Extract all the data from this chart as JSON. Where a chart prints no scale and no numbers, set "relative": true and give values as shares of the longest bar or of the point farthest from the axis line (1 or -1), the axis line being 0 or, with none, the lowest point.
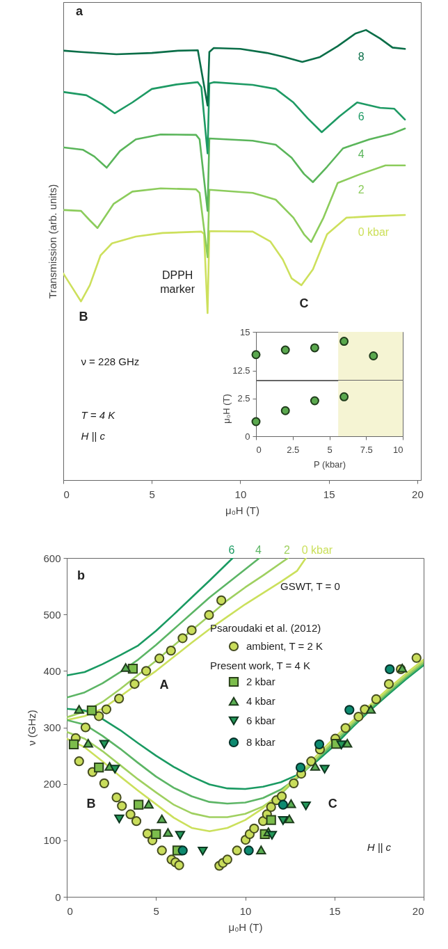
{
  "chart_data": [
    {
      "type": "line",
      "relative": true,
      "xlabel": "μ₀H (T)",
      "ylabel": "Transmission (arb. units)",
      "xlim": [
        0,
        20.2
      ],
      "xticks": [
        0,
        5,
        10,
        15,
        20
      ],
      "annotations": [
        "a",
        "DPPH marker",
        "B",
        "C",
        "ν = 228 GHz",
        "T = 4 K",
        "H || c"
      ],
      "series": [
        {
          "name": "0 kbar",
          "color": "#cde05c",
          "x": [
            0,
            0.5,
            1.0,
            1.5,
            2.1,
            2.75,
            4.1,
            5.6,
            7.8,
            7.95,
            8.15,
            8.25,
            10.7,
            11.7,
            12.4,
            12.9,
            13.45,
            14.1,
            14.9,
            16.0,
            17.4,
            19.3
          ],
          "values": [
            0.459,
            0.428,
            0.397,
            0.433,
            0.499,
            0.526,
            0.541,
            0.549,
            0.552,
            0.547,
            0.371,
            0.553,
            0.552,
            0.53,
            0.49,
            0.448,
            0.433,
            0.468,
            0.546,
            0.583,
            0.586,
            0.589
          ]
        },
        {
          "name": "2",
          "color": "#8ccc5c",
          "x": [
            0.05,
            1.0,
            1.5,
            1.93,
            2.85,
            3.9,
            5.5,
            7.5,
            7.7,
            8.15,
            8.25,
            10.7,
            12.0,
            13.0,
            13.6,
            14.0,
            14.7,
            15.5,
            16.8,
            18.2,
            19.3
          ],
          "values": [
            0.6,
            0.598,
            0.577,
            0.56,
            0.614,
            0.641,
            0.648,
            0.646,
            0.638,
            0.495,
            0.645,
            0.638,
            0.623,
            0.583,
            0.546,
            0.529,
            0.583,
            0.66,
            0.68,
            0.699,
            0.699
          ]
        },
        {
          "name": "4",
          "color": "#5ab55a",
          "x": [
            0.05,
            1.1,
            1.75,
            2.45,
            3.2,
            4.1,
            5.5,
            7.5,
            7.7,
            8.15,
            8.25,
            10.7,
            12.0,
            12.9,
            13.6,
            14.1,
            14.9,
            15.8,
            17.3,
            18.6,
            19.3
          ],
          "values": [
            0.739,
            0.734,
            0.719,
            0.694,
            0.731,
            0.757,
            0.768,
            0.767,
            0.757,
            0.598,
            0.759,
            0.754,
            0.745,
            0.716,
            0.68,
            0.662,
            0.696,
            0.737,
            0.757,
            0.77,
            0.781
          ]
        },
        {
          "name": "6",
          "color": "#1e9a64",
          "x": [
            0.05,
            1.3,
            2.2,
            2.9,
            3.9,
            5.0,
            6.4,
            7.6,
            7.8,
            8.15,
            8.25,
            8.5,
            10.7,
            12.0,
            13.0,
            13.8,
            14.6,
            15.6,
            16.6,
            17.9,
            18.7,
            19.3
          ],
          "values": [
            0.862,
            0.855,
            0.835,
            0.815,
            0.839,
            0.869,
            0.879,
            0.884,
            0.873,
            0.726,
            0.881,
            0.884,
            0.878,
            0.869,
            0.839,
            0.804,
            0.773,
            0.808,
            0.839,
            0.827,
            0.825,
            0.801
          ]
        },
        {
          "name": "8",
          "color": "#0a6e48",
          "x": [
            0.05,
            1.0,
            3.0,
            5.0,
            6.5,
            7.6,
            8.15,
            8.25,
            8.5,
            10.0,
            11.5,
            12.5,
            13.5,
            14.5,
            15.5,
            16.5,
            17.1,
            17.9,
            18.6,
            19.3
          ],
          "values": [
            0.954,
            0.951,
            0.946,
            0.949,
            0.954,
            0.955,
            0.832,
            0.951,
            0.96,
            0.958,
            0.949,
            0.94,
            0.929,
            0.94,
            0.964,
            0.992,
            1.0,
            0.981,
            0.961,
            0.958
          ]
        }
      ]
    },
    {
      "type": "scatter",
      "marker": "circle",
      "xlim": [
        0,
        10
      ],
      "xticks": [
        0,
        2.5,
        5,
        7.5,
        10
      ],
      "ylim": [
        11.9,
        15
      ],
      "yticks": [
        12.5,
        15
      ],
      "tick_labels": "y",
      "bands": [
        {
          "axis": "x",
          "from": 5.6,
          "to": 10,
          "color": "#f5f4d3"
        }
      ],
      "series": [
        {
          "color": "#5aa84e",
          "x": [
            0,
            2,
            4,
            6,
            8
          ],
          "values": [
            13.53,
            13.83,
            13.97,
            14.39,
            13.45
          ]
        }
      ]
    },
    {
      "type": "scatter",
      "marker": "circle",
      "xlabel": "P (kbar)",
      "ylabel": "μ₀H (T)",
      "xlim": [
        0,
        10
      ],
      "xticks": [
        0,
        2.5,
        5,
        7.5,
        10
      ],
      "ylim": [
        0,
        3.7
      ],
      "yticks": [
        0,
        2.5
      ],
      "bands": [
        {
          "axis": "x",
          "from": 5.6,
          "to": 10,
          "color": "#f5f4d3"
        }
      ],
      "series": [
        {
          "color": "#5aa84e",
          "x": [
            0,
            2,
            4,
            6
          ],
          "values": [
            0.97,
            1.7,
            2.36,
            2.62
          ]
        }
      ]
    },
    {
      "type": "line",
      "xlabel": "μ₀H (T)",
      "ylabel": "ν (GHz)",
      "xlim": [
        0,
        20
      ],
      "xticks": [
        0,
        5,
        10,
        15,
        20
      ],
      "ylim": [
        0,
        600
      ],
      "yticks": [
        0,
        100,
        200,
        300,
        400,
        500,
        600
      ],
      "legend": "top right",
      "annotations": [
        "b",
        "GSWT, T = 0",
        "Psaroudaki et al. (2012)",
        "Present work, T = 4 K",
        "A",
        "B",
        "C",
        "H || c"
      ],
      "series": [
        {
          "name": "6",
          "color": "#1a9a62",
          "x": [
            0,
            1,
            2,
            3,
            4,
            5,
            6,
            7,
            8,
            9.3
          ],
          "values": [
            392,
            398,
            412,
            428,
            445,
            471,
            500,
            530,
            560,
            600
          ]
        },
        {
          "name": "4",
          "color": "#5cb565",
          "x": [
            0,
            1,
            2,
            3,
            4,
            5,
            6,
            7,
            8,
            9,
            10,
            10.8
          ],
          "values": [
            353,
            362,
            378,
            398,
            420,
            446,
            474,
            502,
            530,
            555,
            580,
            600
          ]
        },
        {
          "name": "2",
          "color": "#9fd060",
          "x": [
            0,
            1,
            2,
            3,
            4,
            5,
            6,
            7,
            8,
            9,
            10,
            11,
            12.4
          ],
          "values": [
            318,
            328,
            345,
            368,
            393,
            418,
            445,
            472,
            498,
            525,
            548,
            569,
            600
          ]
        },
        {
          "name": "0 kbar",
          "color": "#cbe05c",
          "x": [
            0,
            1,
            2,
            3,
            4,
            5,
            6,
            7,
            8,
            9,
            10,
            11,
            12,
            12.9,
            13.4
          ],
          "values": [
            313,
            320,
            333,
            355,
            378,
            400,
            425,
            450,
            474,
            496,
            518,
            538,
            558,
            577,
            600
          ]
        },
        {
          "color": "#1a9a62",
          "x": [
            0,
            1,
            2,
            3,
            4,
            5,
            6,
            7,
            8,
            9,
            10,
            11,
            12,
            13,
            14,
            15,
            16,
            17,
            18,
            19,
            20
          ],
          "values": [
            333,
            330,
            315,
            295,
            272,
            250,
            230,
            213,
            199,
            192,
            191,
            195,
            203,
            217,
            240,
            268,
            300,
            330,
            358,
            385,
            410
          ]
        },
        {
          "color": "#5cb565",
          "x": [
            0,
            1,
            2,
            3,
            4,
            5,
            6,
            7,
            8,
            9,
            10,
            11,
            12,
            13,
            14,
            15,
            16,
            17,
            18,
            19,
            20
          ],
          "values": [
            313,
            305,
            285,
            262,
            237,
            213,
            193,
            178,
            168,
            165,
            167,
            175,
            190,
            212,
            243,
            273,
            303,
            333,
            361,
            388,
            413
          ]
        },
        {
          "color": "#9fd060",
          "x": [
            0,
            1,
            2,
            3,
            4,
            5,
            6,
            7,
            8,
            9,
            10,
            11,
            12,
            13,
            14,
            15,
            16,
            17,
            18,
            19,
            20
          ],
          "values": [
            292,
            280,
            258,
            233,
            208,
            185,
            163,
            148,
            141,
            141,
            147,
            160,
            182,
            213,
            245,
            277,
            307,
            336,
            364,
            391,
            416
          ]
        },
        {
          "color": "#cbe05c",
          "x": [
            0,
            1,
            2,
            3,
            4,
            5,
            6,
            7,
            8,
            9,
            10,
            11,
            12,
            13,
            14,
            15,
            16,
            17,
            18,
            19,
            20
          ],
          "values": [
            280,
            265,
            240,
            213,
            188,
            164,
            140,
            122,
            116,
            122,
            136,
            157,
            185,
            217,
            250,
            282,
            311,
            340,
            368,
            395,
            420
          ]
        },
        {
          "name": "ambient, T = 2 K",
          "type": "scatter",
          "marker": "circle",
          "color": "#c9dd5b",
          "x": [
            0.5,
            1.05,
            1.8,
            2.22,
            2.93,
            3.8,
            4.45,
            5.19,
            5.84,
            6.49,
            7.0,
            7.97,
            8.66,
            0.69,
            1.44,
            2.1,
            2.79,
            3.09,
            3.57,
            3.9,
            4.52,
            4.8,
            5.33,
            5.87,
            6.09,
            6.3,
            8.55,
            8.75,
            9.0,
            9.54,
            10.02,
            10.25,
            10.5,
            11.0,
            11.22,
            11.45,
            11.75,
            12.05,
            12.72,
            13.14,
            13.7,
            14.19,
            15.05,
            15.62,
            16.35,
            16.7,
            17.34,
            18.05,
            18.72,
            19.6
          ],
          "values": [
            281,
            300,
            320,
            332,
            351,
            377,
            400,
            422,
            436,
            458,
            472,
            499,
            525,
            240,
            221,
            201,
            176,
            161,
            146,
            134,
            112,
            100,
            82,
            66,
            61,
            56,
            55,
            60,
            66,
            82,
            101,
            111,
            121,
            134,
            146,
            159,
            171,
            178,
            201,
            218,
            240,
            261,
            280,
            299,
            319,
            332,
            350,
            377,
            403,
            423
          ]
        },
        {
          "name": "2 kbar",
          "type": "scatter",
          "marker": "square",
          "color": "#7cbd4c",
          "x": [
            0.39,
            1.4,
            1.8,
            3.7,
            4.02,
            5.0,
            6.2,
            11.1,
            11.45,
            15.1
          ],
          "values": [
            270,
            330,
            229,
            404,
            163,
            111,
            82,
            111,
            136,
            271
          ]
        },
        {
          "name": "4 kbar",
          "type": "scatter",
          "marker": "triangle",
          "color": "#5aaf52",
          "x": [
            0.69,
            1.2,
            2.4,
            3.3,
            4.59,
            5.33,
            5.67,
            10.89,
            11.3,
            12.47,
            12.57,
            13.92,
            15.72,
            17.04,
            18.8
          ],
          "values": [
            332,
            272,
            231,
            406,
            164,
            138,
            114,
            83,
            115,
            138,
            165,
            231,
            272,
            332,
            405
          ]
        },
        {
          "name": "6 kbar",
          "type": "scatter",
          "marker": "triangle-down",
          "color": "#23995a",
          "x": [
            2.1,
            2.7,
            2.94,
            6.35,
            7.62,
            11.5,
            12.12,
            13.4,
            14.45,
            15.39
          ],
          "values": [
            270,
            226,
            138,
            109,
            81,
            109,
            135,
            161,
            226,
            269
          ]
        },
        {
          "name": "8 kbar",
          "type": "scatter",
          "marker": "circle",
          "color": "#0d8a70",
          "x": [
            6.5,
            10.2,
            12.12,
            13.1,
            14.15,
            15.84,
            18.1
          ],
          "values": [
            82,
            82,
            163,
            229,
            270,
            331,
            403
          ]
        }
      ]
    }
  ]
}
